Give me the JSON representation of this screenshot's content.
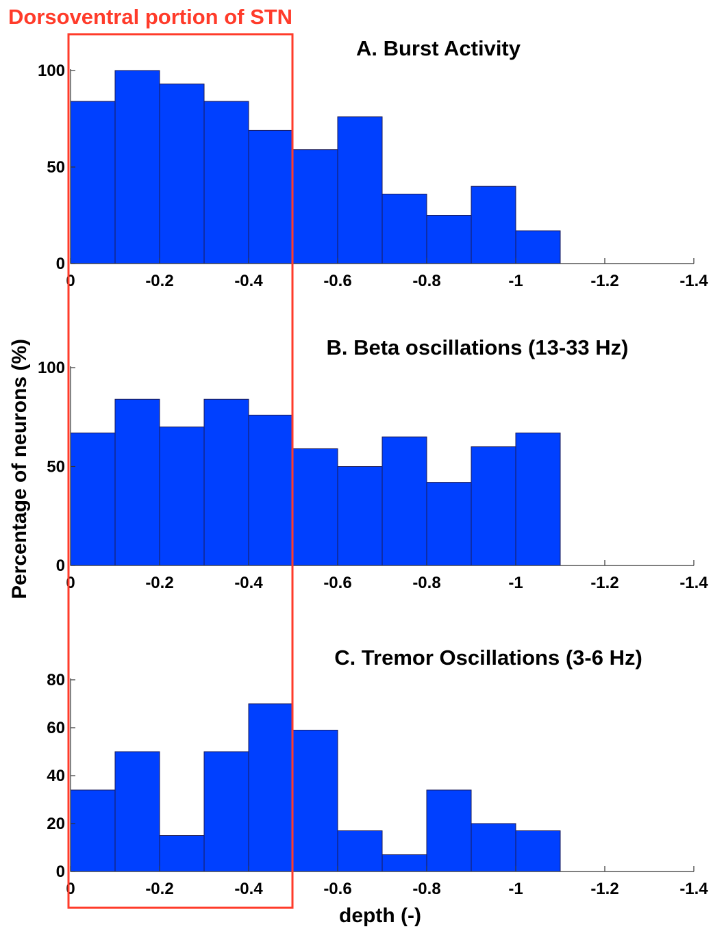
{
  "figure": {
    "annotation": "Dorsoventral portion of STN",
    "annotation_color": "#ff3b2a",
    "bar_color": "#0040ff",
    "ylabel": "Percentage of neurons (%)",
    "xlabel": "depth (-)"
  },
  "chart_data": [
    {
      "type": "bar",
      "title": "A.  Burst Activity",
      "bin_edges": [
        0,
        -0.1,
        -0.2,
        -0.3,
        -0.4,
        -0.5,
        -0.6,
        -0.7,
        -0.8,
        -0.9,
        -1.0,
        -1.1
      ],
      "values": [
        84,
        100,
        93,
        84,
        69,
        59,
        76,
        36,
        25,
        40,
        17
      ],
      "xlim": [
        0,
        -1.4
      ],
      "ylim": [
        0,
        100
      ],
      "xticks": [
        0,
        -0.2,
        -0.4,
        -0.6,
        -0.8,
        -1,
        -1.2,
        -1.4
      ],
      "xtick_labels": [
        "0",
        "-0.2",
        "-0.4",
        "-0.6",
        "-0.8",
        "-1",
        "-1.2",
        "-1.4"
      ],
      "yticks": [
        0,
        50,
        100
      ],
      "ytick_labels": [
        "0",
        "50",
        "100"
      ]
    },
    {
      "type": "bar",
      "title": "B. Beta oscillations (13-33 Hz)",
      "bin_edges": [
        0,
        -0.1,
        -0.2,
        -0.3,
        -0.4,
        -0.5,
        -0.6,
        -0.7,
        -0.8,
        -0.9,
        -1.0,
        -1.1
      ],
      "values": [
        67,
        84,
        70,
        84,
        76,
        59,
        50,
        65,
        42,
        60,
        67
      ],
      "xlim": [
        0,
        -1.4
      ],
      "ylim": [
        0,
        100
      ],
      "xticks": [
        0,
        -0.2,
        -0.4,
        -0.6,
        -0.8,
        -1,
        -1.2,
        -1.4
      ],
      "xtick_labels": [
        "0",
        "-0.2",
        "-0.4",
        "-0.6",
        "-0.8",
        "-1",
        "-1.2",
        "-1.4"
      ],
      "yticks": [
        0,
        50,
        100
      ],
      "ytick_labels": [
        "0",
        "50",
        "100"
      ]
    },
    {
      "type": "bar",
      "title": "C. Tremor Oscillations (3-6 Hz)",
      "bin_edges": [
        0,
        -0.1,
        -0.2,
        -0.3,
        -0.4,
        -0.5,
        -0.6,
        -0.7,
        -0.8,
        -0.9,
        -1.0,
        -1.1
      ],
      "values": [
        34,
        50,
        15,
        50,
        70,
        59,
        17,
        7,
        34,
        20,
        17
      ],
      "xlim": [
        0,
        -1.4
      ],
      "ylim": [
        0,
        80
      ],
      "xticks": [
        0,
        -0.2,
        -0.4,
        -0.6,
        -0.8,
        -1,
        -1.2,
        -1.4
      ],
      "xtick_labels": [
        "0",
        "-0.2",
        "-0.4",
        "-0.6",
        "-0.8",
        "-1",
        "-1.2",
        "-1.4"
      ],
      "yticks": [
        0,
        20,
        40,
        60,
        80
      ],
      "ytick_labels": [
        "0",
        "20",
        "40",
        "60",
        "80"
      ]
    }
  ]
}
